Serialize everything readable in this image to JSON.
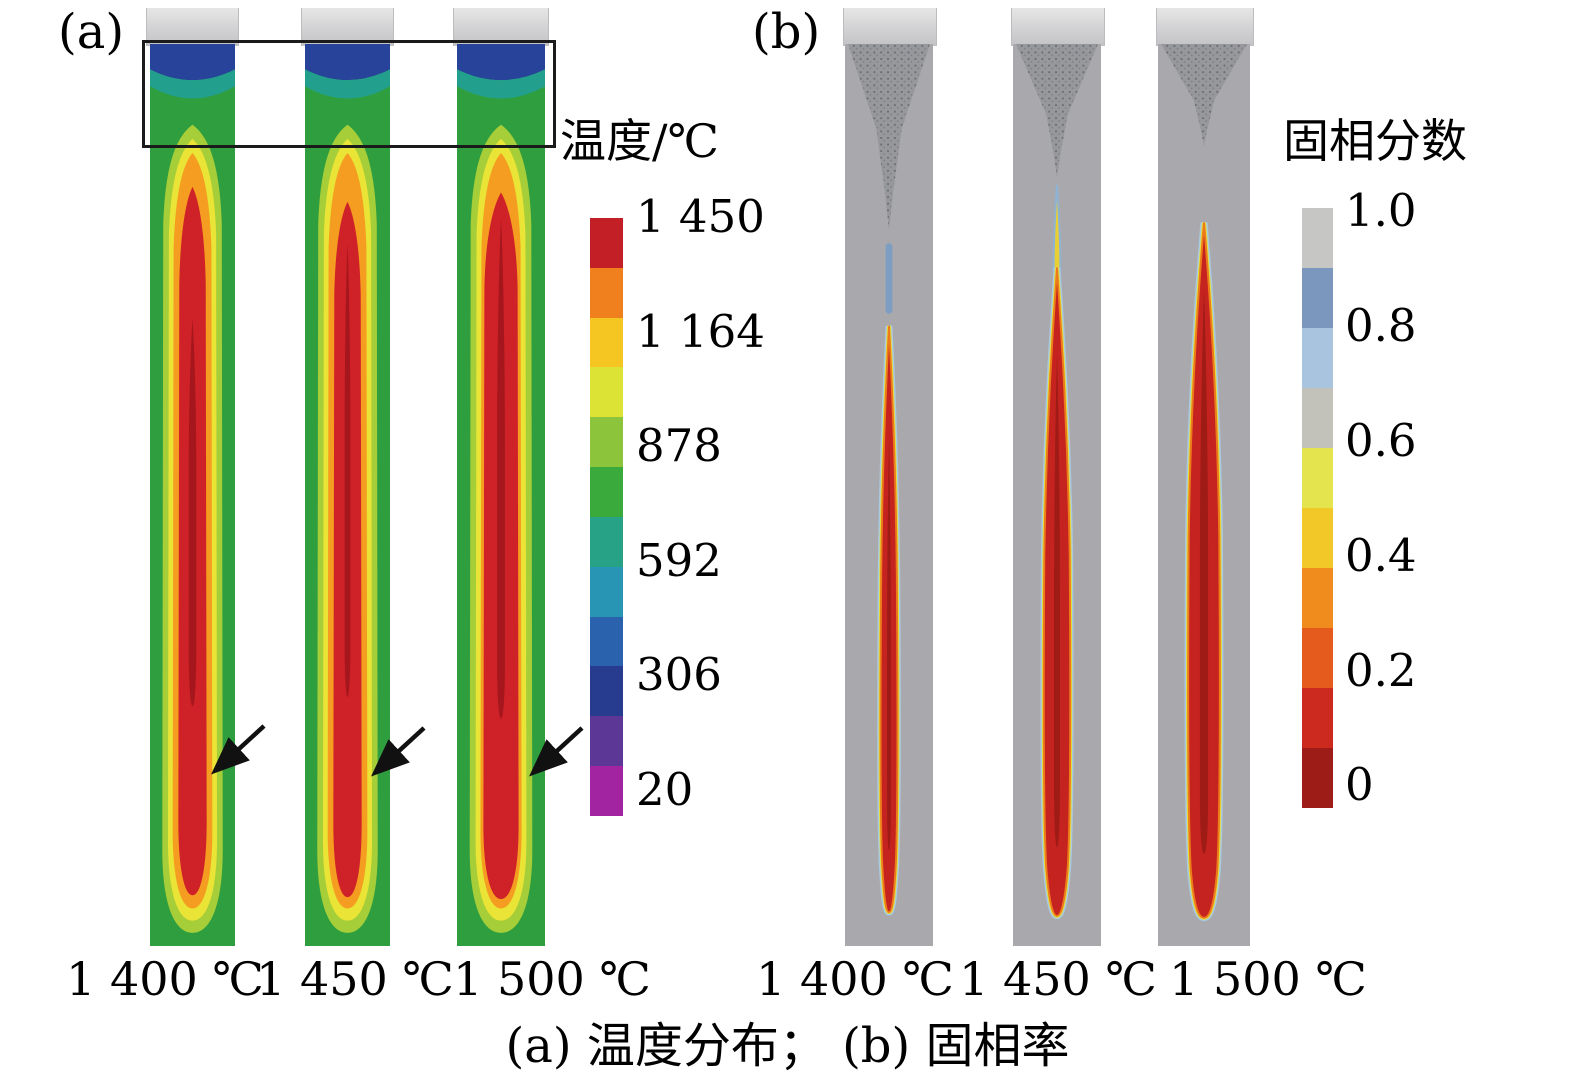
{
  "figure": {
    "caption": "(a) 温度分布； (b) 固相率"
  },
  "panel_a": {
    "tag": "(a)",
    "legend_title": "温度/℃",
    "ticks": [
      "1 450",
      "1 164",
      "878",
      "592",
      "306",
      "20"
    ],
    "colors": [
      "#c22026",
      "#f07f1e",
      "#f5c522",
      "#dde335",
      "#8cc43c",
      "#3aaa3c",
      "#27a287",
      "#2895b5",
      "#2b62ad",
      "#283c8f",
      "#5c3796",
      "#a224a0"
    ],
    "cases": [
      "1 400 ℃",
      "1 450 ℃",
      "1 500 ℃"
    ]
  },
  "panel_b": {
    "tag": "(b)",
    "legend_title": "固相分数",
    "ticks": [
      "1.0",
      "0.8",
      "0.6",
      "0.4",
      "0.2",
      "0"
    ],
    "colors": [
      "#c6c6c4",
      "#7b97bd",
      "#a9c4de",
      "#c2c2ba",
      "#e4e44e",
      "#f2c828",
      "#f08c1e",
      "#e55a1d",
      "#cc2a1e",
      "#9e1c17"
    ],
    "cases": [
      "1 400 ℃",
      "1 450 ℃",
      "1 500 ℃"
    ]
  },
  "chart_data": [
    {
      "type": "heatmap",
      "title": "温度分布",
      "colorbar_title": "温度/℃",
      "colorbar_ticks": [
        1450,
        1164,
        878,
        592,
        306,
        20
      ],
      "colorbar_range": [
        20,
        1450
      ],
      "colorbar_colors_top_to_bottom": [
        "#c22026",
        "#f07f1e",
        "#f5c522",
        "#dde335",
        "#8cc43c",
        "#3aaa3c",
        "#27a287",
        "#2895b5",
        "#2b62ad",
        "#283c8f",
        "#5c3796",
        "#a224a0"
      ],
      "cases": [
        "1 400 ℃",
        "1 450 ℃",
        "1 500 ℃"
      ],
      "legend_position": "right",
      "description": "Three vertical castings showing simulated temperature contours; hot red core surrounded by orange, yellow, green shells; blue cold zone at top; black rectangle highlights top region; arrows mark solidification front near bottom."
    },
    {
      "type": "heatmap",
      "title": "固相率",
      "colorbar_title": "固相分数",
      "colorbar_ticks": [
        1.0,
        0.8,
        0.6,
        0.4,
        0.2,
        0
      ],
      "colorbar_range": [
        0,
        1.0
      ],
      "colorbar_colors_top_to_bottom": [
        "#c6c6c4",
        "#7b97bd",
        "#a9c4de",
        "#c2c2ba",
        "#e4e44e",
        "#f2c828",
        "#f08c1e",
        "#e55a1d",
        "#cc2a1e",
        "#9e1c17"
      ],
      "cases": [
        "1 400 ℃",
        "1 450 ℃",
        "1 500 ℃"
      ],
      "legend_position": "right",
      "description": "Three gray castings showing solid-phase fraction; liquid (red, fraction 0) teardrop region in the center that grows with pouring temperature; speckled solidified funnel at top."
    }
  ]
}
